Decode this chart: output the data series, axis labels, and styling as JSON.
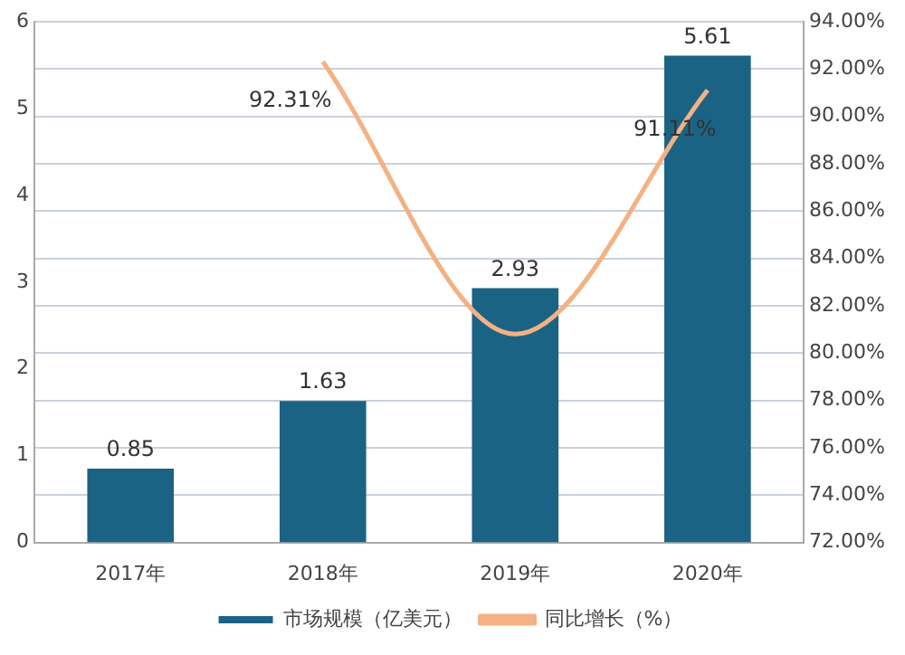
{
  "chart_data": {
    "type": "bar",
    "categories": [
      "2017年",
      "2018年",
      "2019年",
      "2020年"
    ],
    "series": [
      {
        "name": "市场规模（亿美元）",
        "color": "#1b6385",
        "values": [
          0.85,
          1.63,
          2.93,
          5.61
        ],
        "value_labels": [
          "0.85",
          "1.63",
          "2.93",
          "5.61"
        ]
      },
      {
        "name": "同比增长（%）",
        "type": "line",
        "axis": "y2",
        "color": "#f4b183",
        "values": [
          null,
          92.31,
          80.8,
          91.11
        ],
        "value_labels": [
          null,
          "92.31%",
          null,
          "91.11%"
        ]
      }
    ],
    "ylim": [
      0,
      6
    ],
    "yticks": [
      0,
      1,
      2,
      3,
      4,
      5,
      6
    ],
    "y2lim": [
      72,
      94
    ],
    "y2ticks": [
      {
        "value": 72,
        "label": "72.00%"
      },
      {
        "value": 74,
        "label": "74.00%"
      },
      {
        "value": 76,
        "label": "76.00%"
      },
      {
        "value": 78,
        "label": "78.00%"
      },
      {
        "value": 80,
        "label": "80.00%"
      },
      {
        "value": 82,
        "label": "82.00%"
      },
      {
        "value": 84,
        "label": "84.00%"
      },
      {
        "value": 86,
        "label": "86.00%"
      },
      {
        "value": 88,
        "label": "88.00%"
      },
      {
        "value": 90,
        "label": "90.00%"
      },
      {
        "value": 92,
        "label": "92.00%"
      },
      {
        "value": 94,
        "label": "94.00%"
      }
    ],
    "grid": "y2",
    "legend": "bottom",
    "marker": "none"
  }
}
